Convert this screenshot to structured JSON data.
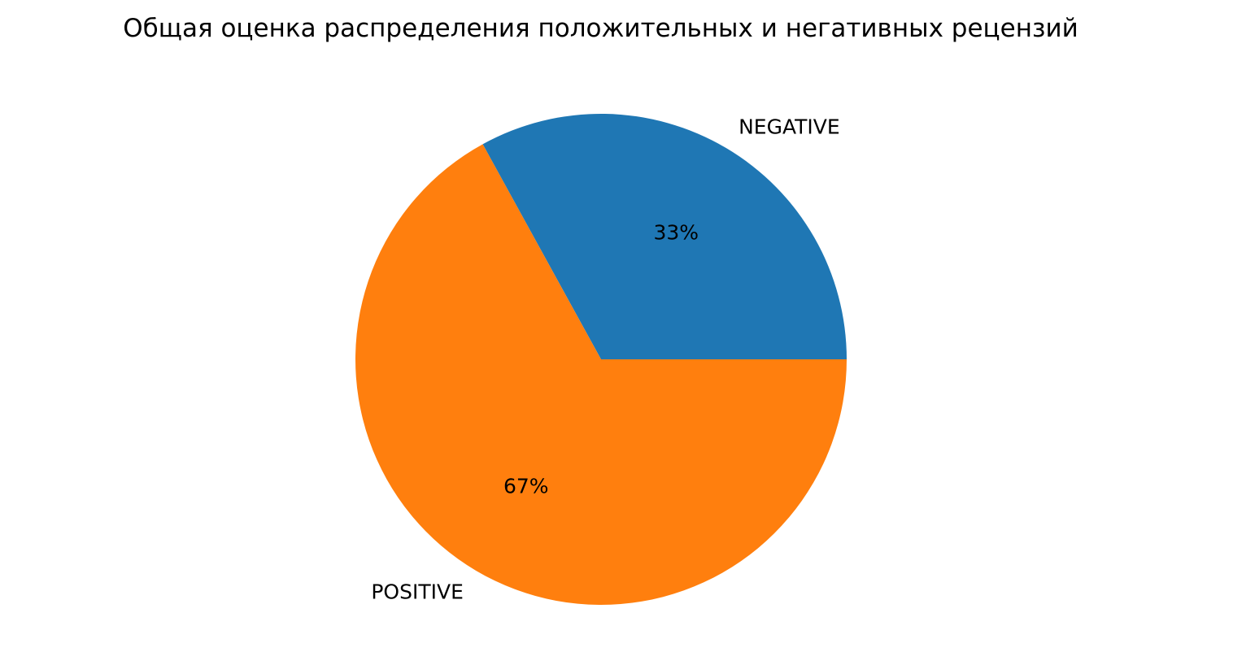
{
  "chart_data": {
    "type": "pie",
    "title": "Общая оценка распределения положительных и негативных рецензий",
    "slices": [
      {
        "label": "NEGATIVE",
        "value": 33,
        "pct_label": "33%",
        "color": "#1f77b4"
      },
      {
        "label": "POSITIVE",
        "value": 67,
        "pct_label": "67%",
        "color": "#ff7f0e"
      }
    ],
    "start_angle": 0,
    "direction": "counterclockwise"
  }
}
